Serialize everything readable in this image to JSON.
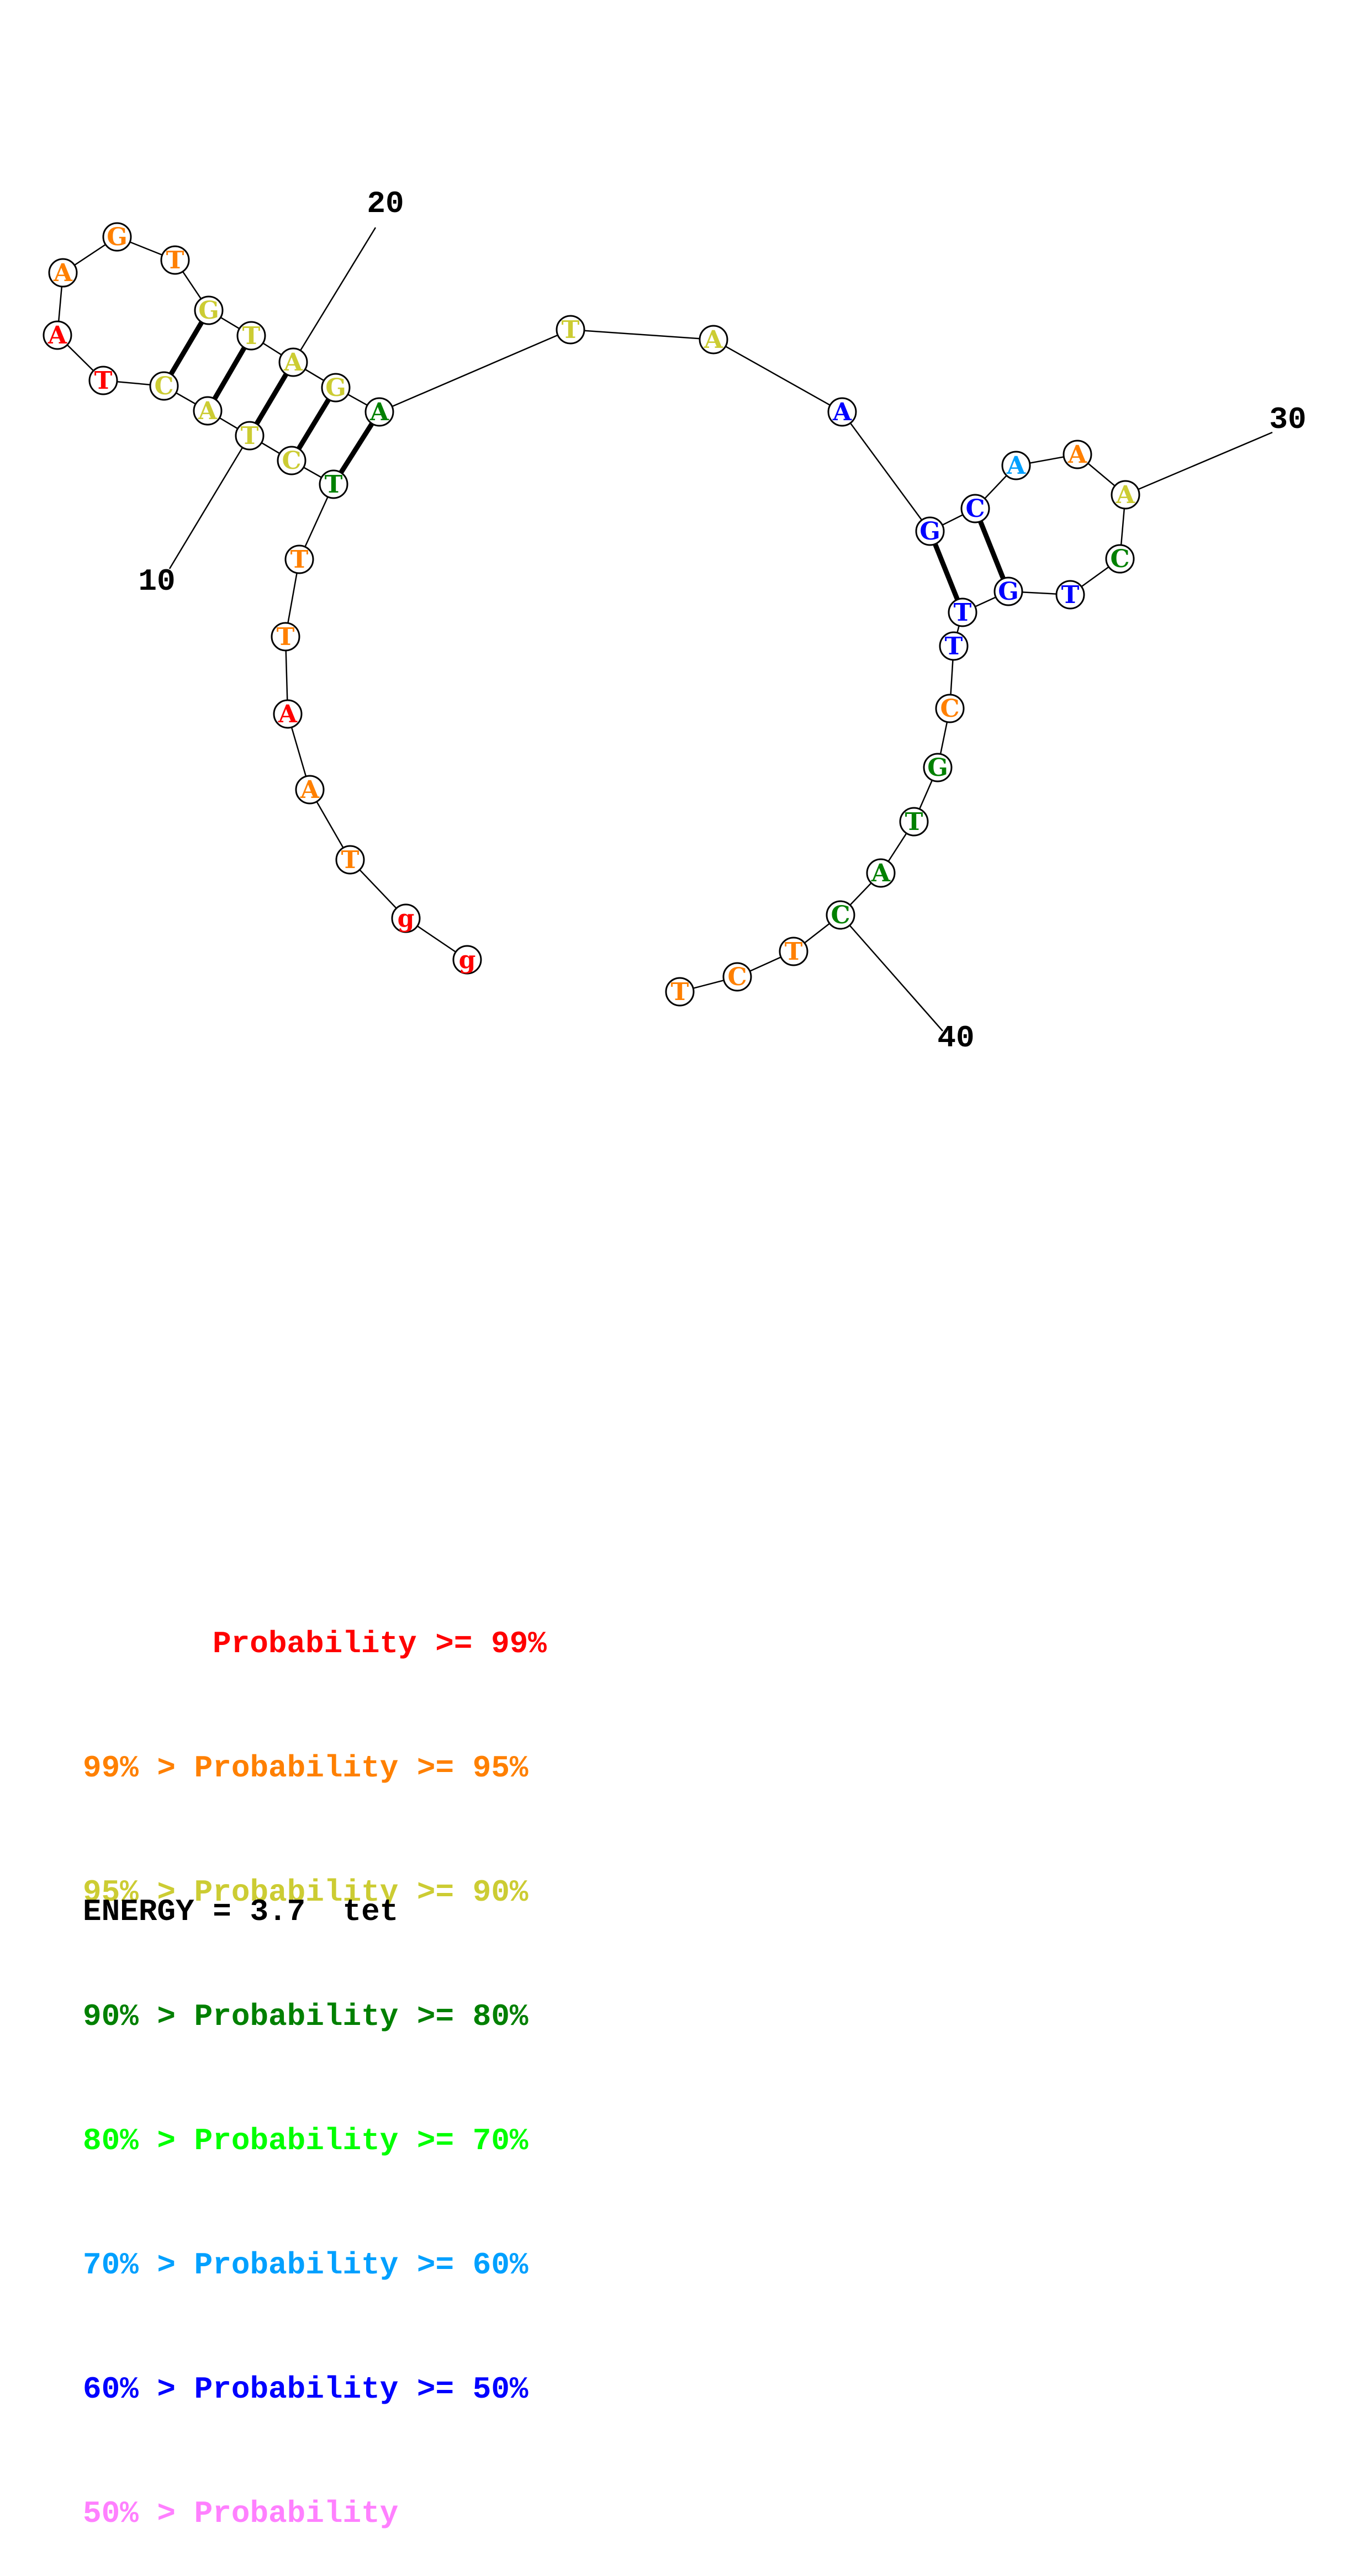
{
  "structure": {
    "nucleotides": [
      {
        "n": 1,
        "base": "g",
        "color": "#ff0000"
      },
      {
        "n": 2,
        "base": "g",
        "color": "#ff0000"
      },
      {
        "n": 3,
        "base": "T",
        "color": "#ff8000"
      },
      {
        "n": 4,
        "base": "A",
        "color": "#ff8000"
      },
      {
        "n": 5,
        "base": "A",
        "color": "#ff0000"
      },
      {
        "n": 6,
        "base": "T",
        "color": "#ff8000"
      },
      {
        "n": 7,
        "base": "T",
        "color": "#ff8000"
      },
      {
        "n": 8,
        "base": "T",
        "color": "#008000"
      },
      {
        "n": 9,
        "base": "C",
        "color": "#cccc33"
      },
      {
        "n": 10,
        "base": "T",
        "color": "#cccc33"
      },
      {
        "n": 11,
        "base": "A",
        "color": "#cccc33"
      },
      {
        "n": 12,
        "base": "C",
        "color": "#cccc33"
      },
      {
        "n": 13,
        "base": "T",
        "color": "#ff0000"
      },
      {
        "n": 14,
        "base": "A",
        "color": "#ff0000"
      },
      {
        "n": 15,
        "base": "A",
        "color": "#ff8000"
      },
      {
        "n": 16,
        "base": "G",
        "color": "#ff8000"
      },
      {
        "n": 17,
        "base": "T",
        "color": "#ff8000"
      },
      {
        "n": 18,
        "base": "G",
        "color": "#cccc33"
      },
      {
        "n": 19,
        "base": "T",
        "color": "#cccc33"
      },
      {
        "n": 20,
        "base": "A",
        "color": "#cccc33"
      },
      {
        "n": 21,
        "base": "G",
        "color": "#cccc33"
      },
      {
        "n": 22,
        "base": "A",
        "color": "#008000"
      },
      {
        "n": 23,
        "base": "T",
        "color": "#cccc33"
      },
      {
        "n": 24,
        "base": "A",
        "color": "#cccc33"
      },
      {
        "n": 25,
        "base": "A",
        "color": "#0000ff"
      },
      {
        "n": 26,
        "base": "G",
        "color": "#0000ff"
      },
      {
        "n": 27,
        "base": "C",
        "color": "#0000ff"
      },
      {
        "n": 28,
        "base": "A",
        "color": "#00a0ff"
      },
      {
        "n": 29,
        "base": "A",
        "color": "#ff8000"
      },
      {
        "n": 30,
        "base": "A",
        "color": "#cccc33"
      },
      {
        "n": 31,
        "base": "C",
        "color": "#008000"
      },
      {
        "n": 32,
        "base": "T",
        "color": "#0000ff"
      },
      {
        "n": 33,
        "base": "G",
        "color": "#0000ff"
      },
      {
        "n": 34,
        "base": "T",
        "color": "#0000ff"
      },
      {
        "n": 35,
        "base": "T",
        "color": "#0000ff"
      },
      {
        "n": 36,
        "base": "C",
        "color": "#ff8000"
      },
      {
        "n": 37,
        "base": "G",
        "color": "#008000"
      },
      {
        "n": 38,
        "base": "T",
        "color": "#008000"
      },
      {
        "n": 39,
        "base": "A",
        "color": "#008000"
      },
      {
        "n": 40,
        "base": "C",
        "color": "#008000"
      },
      {
        "n": 41,
        "base": "T",
        "color": "#ff8000"
      },
      {
        "n": 42,
        "base": "C",
        "color": "#ff8000"
      },
      {
        "n": 43,
        "base": "T",
        "color": "#ff8000"
      }
    ],
    "pairs": [
      [
        8,
        22
      ],
      [
        9,
        21
      ],
      [
        10,
        20
      ],
      [
        11,
        19
      ],
      [
        12,
        18
      ],
      [
        26,
        34
      ],
      [
        27,
        33
      ]
    ],
    "index_labels": [
      {
        "n": 10,
        "text": "10"
      },
      {
        "n": 20,
        "text": "20"
      },
      {
        "n": 30,
        "text": "30"
      },
      {
        "n": 40,
        "text": "40"
      }
    ]
  },
  "legend": [
    {
      "prefix": "    ",
      "text": "Probability >= 99%",
      "color": "#ff0000"
    },
    {
      "prefix": "",
      "text": "99% > Probability >= 95%",
      "color": "#ff8000"
    },
    {
      "prefix": "",
      "text": "95% > Probability >= 90%",
      "color": "#cccc33"
    },
    {
      "prefix": "",
      "text": "90% > Probability >= 80%",
      "color": "#008000"
    },
    {
      "prefix": "",
      "text": "80% > Probability >= 70%",
      "color": "#00ff00"
    },
    {
      "prefix": "",
      "text": "70% > Probability >= 60%",
      "color": "#00a0ff"
    },
    {
      "prefix": "",
      "text": "60% > Probability >= 50%",
      "color": "#0000ff"
    },
    {
      "prefix": "",
      "text": "50% > Probability",
      "color": "#ff80ff"
    }
  ],
  "energy_label": "ENERGY = 3.7  tet"
}
